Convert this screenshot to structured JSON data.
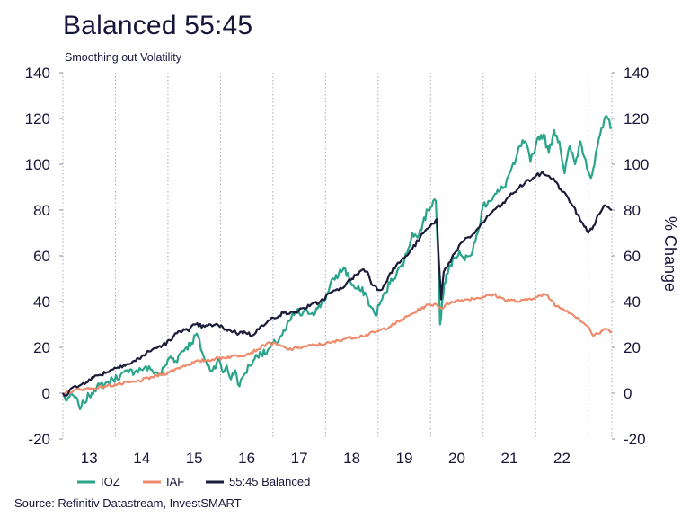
{
  "chart_data": {
    "type": "line",
    "title": "Balanced 55:45",
    "subtitle": "Smoothing out Volatility",
    "source": "Source: Refinitiv Datastream, InvestSMART",
    "ylabel_right": "% Change",
    "ylim": [
      -20,
      140
    ],
    "yticks": [
      -20,
      0,
      20,
      40,
      60,
      80,
      100,
      120,
      140
    ],
    "ytick_labels": [
      "-20",
      "0",
      "20",
      "40",
      "60",
      "80",
      "100",
      "120",
      "140"
    ],
    "xlim": [
      12.5,
      22.95
    ],
    "x_gridlines": [
      12.5,
      13.5,
      14.5,
      15.5,
      16.5,
      17.5,
      18.5,
      19.5,
      20.5,
      21.5,
      22.5
    ],
    "xtick_positions": [
      13,
      14,
      15,
      16,
      17,
      18,
      19,
      20,
      21,
      22
    ],
    "xtick_labels": [
      "13",
      "14",
      "15",
      "16",
      "17",
      "18",
      "19",
      "20",
      "21",
      "22"
    ],
    "grid": "vertical dotted",
    "legend": "bottom",
    "series": [
      {
        "name": "IOZ",
        "color": "#2aa58a",
        "x": [
          12.5,
          12.55,
          12.6,
          12.7,
          12.8,
          12.85,
          12.9,
          13.0,
          13.1,
          13.2,
          13.3,
          13.45,
          13.6,
          13.75,
          13.9,
          14.05,
          14.2,
          14.35,
          14.45,
          14.55,
          14.65,
          14.75,
          14.85,
          14.95,
          15.05,
          15.15,
          15.25,
          15.35,
          15.45,
          15.55,
          15.62,
          15.7,
          15.78,
          15.86,
          15.95,
          16.05,
          16.15,
          16.25,
          16.35,
          16.45,
          16.55,
          16.65,
          16.75,
          16.85,
          16.95,
          17.05,
          17.15,
          17.25,
          17.35,
          17.45,
          17.55,
          17.65,
          17.75,
          17.85,
          17.95,
          18.05,
          18.15,
          18.25,
          18.35,
          18.45,
          18.55,
          18.65,
          18.75,
          18.85,
          18.95,
          19.05,
          19.15,
          19.25,
          19.35,
          19.45,
          19.55,
          19.6,
          19.65,
          19.68,
          19.72,
          19.76,
          19.8,
          19.85,
          19.95,
          20.05,
          20.15,
          20.25,
          20.35,
          20.42,
          20.5,
          20.6,
          20.7,
          20.8,
          20.9,
          21.0,
          21.1,
          21.2,
          21.3,
          21.4,
          21.5,
          21.55,
          21.65,
          21.75,
          21.85,
          21.95,
          22.05,
          22.15,
          22.25,
          22.35,
          22.45,
          22.55,
          22.62,
          22.7,
          22.78,
          22.85,
          22.95
        ],
        "y": [
          0,
          -3,
          -2,
          -1,
          -5,
          -6,
          -4,
          -1,
          2,
          3,
          4,
          6,
          8,
          9,
          10,
          11,
          10,
          8,
          12,
          16,
          14,
          18,
          20,
          22,
          26,
          18,
          12,
          10,
          15,
          9,
          12,
          6,
          10,
          3,
          8,
          12,
          15,
          18,
          17,
          20,
          22,
          25,
          28,
          33,
          36,
          34,
          36,
          35,
          37,
          40,
          44,
          50,
          52,
          55,
          50,
          46,
          45,
          44,
          38,
          34,
          40,
          44,
          50,
          52,
          56,
          61,
          70,
          68,
          74,
          80,
          84,
          84,
          55,
          30,
          40,
          48,
          52,
          55,
          59,
          62,
          58,
          60,
          66,
          72,
          82,
          84,
          86,
          88,
          90,
          96,
          100,
          108,
          110,
          101,
          108,
          112,
          113,
          105,
          115,
          110,
          96,
          108,
          100,
          110,
          102,
          94,
          100,
          111,
          116,
          121,
          116
        ],
        "smooth": true
      },
      {
        "name": "IAF",
        "color": "#ef8a6b",
        "x": [
          12.5,
          12.7,
          12.9,
          13.1,
          13.3,
          13.6,
          13.9,
          14.2,
          14.5,
          14.8,
          15.1,
          15.4,
          15.7,
          16.0,
          16.2,
          16.4,
          16.6,
          16.8,
          17.0,
          17.3,
          17.6,
          17.9,
          18.2,
          18.5,
          18.8,
          19.1,
          19.4,
          19.6,
          19.7,
          19.9,
          20.2,
          20.5,
          20.7,
          20.9,
          21.2,
          21.5,
          21.7,
          21.9,
          22.1,
          22.3,
          22.5,
          22.6,
          22.7,
          22.8,
          22.95
        ],
        "y": [
          0,
          1,
          2,
          2,
          3,
          4,
          5,
          7,
          9,
          12,
          14,
          15,
          16,
          17,
          19,
          22,
          21,
          19,
          20,
          21,
          22,
          24,
          25,
          27,
          30,
          34,
          38,
          39,
          37,
          40,
          41,
          42,
          43,
          41,
          40,
          42,
          43,
          38,
          36,
          33,
          29,
          25,
          26,
          28,
          27
        ],
        "smooth": true
      },
      {
        "name": "55:45 Balanced",
        "color": "#1b1b3a",
        "x": [
          12.5,
          12.55,
          12.65,
          12.8,
          13.0,
          13.2,
          13.4,
          13.6,
          13.8,
          14.0,
          14.2,
          14.4,
          14.55,
          14.7,
          14.8,
          14.9,
          15.0,
          15.2,
          15.4,
          15.6,
          15.75,
          15.85,
          15.95,
          16.1,
          16.2,
          16.35,
          16.5,
          16.7,
          16.9,
          17.05,
          17.2,
          17.4,
          17.6,
          17.75,
          17.9,
          18.0,
          18.1,
          18.2,
          18.3,
          18.4,
          18.55,
          18.7,
          18.85,
          19.0,
          19.15,
          19.3,
          19.45,
          19.55,
          19.62,
          19.66,
          19.7,
          19.75,
          19.85,
          19.95,
          20.1,
          20.25,
          20.4,
          20.55,
          20.7,
          20.85,
          21.0,
          21.15,
          21.3,
          21.45,
          21.6,
          21.75,
          21.9,
          22.0,
          22.1,
          22.2,
          22.3,
          22.4,
          22.5,
          22.6,
          22.7,
          22.8,
          22.95
        ],
        "y": [
          0,
          -1,
          2,
          3,
          6,
          8,
          10,
          12,
          13,
          16,
          19,
          21,
          23,
          27,
          28,
          27,
          30,
          29,
          30,
          28,
          27,
          26,
          27,
          25,
          28,
          30,
          33,
          35,
          35,
          37,
          38,
          40,
          44,
          45,
          48,
          50,
          52,
          54,
          53,
          47,
          45,
          51,
          56,
          59,
          63,
          68,
          72,
          74,
          76,
          57,
          41,
          53,
          57,
          61,
          66,
          68,
          72,
          76,
          80,
          82,
          86,
          89,
          92,
          94,
          96,
          95,
          92,
          88,
          86,
          82,
          78,
          74,
          70,
          73,
          78,
          82,
          80
        ],
        "smooth": true
      }
    ]
  }
}
